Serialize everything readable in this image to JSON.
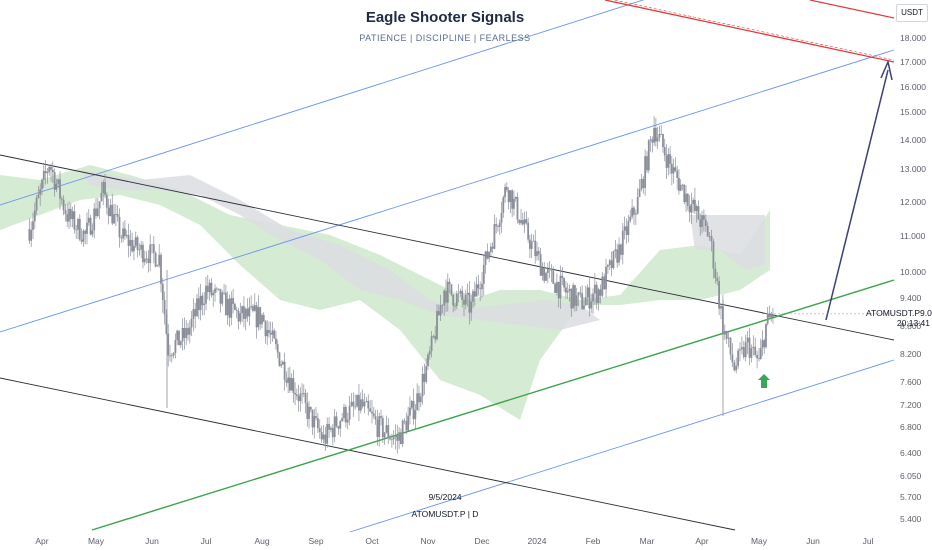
{
  "header": {
    "title": "Eagle Shooter Signals",
    "subtitle": "PATIENCE | DISCIPLINE | FEARLESS"
  },
  "currency_button": "USDT",
  "price_label": {
    "symbol": "ATOMUSDT.P",
    "price": "9.055",
    "countdown": "20:13:41"
  },
  "date_label": "9/5/2024",
  "symbol_label": "ATOMUSDT.P | D",
  "colors": {
    "candle": "#8a8e99",
    "cloud_green": "#cfe8cb",
    "cloud_gray": "#dcdde2",
    "channel_blue": "#6b93ee",
    "trend_black": "#2a2e39",
    "support_green": "#3aa44a",
    "target_red": "#e03a3a",
    "arrow_navy": "#3b3f73",
    "signal_arrow": "#34a853"
  },
  "chart_data": {
    "type": "candlestick",
    "y_scale": "log",
    "ylim": [
      5.2,
      22
    ],
    "y_ticks": [
      "5.400",
      "5.700",
      "6.050",
      "6.400",
      "6.800",
      "7.200",
      "7.600",
      "8.200",
      "8.800",
      "9.400",
      "10.000",
      "11.000",
      "12.000",
      "13.000",
      "14.000",
      "15.000",
      "16.000",
      "17.000",
      "18.000"
    ],
    "x_ticks": [
      "Apr",
      "May",
      "Jun",
      "Jul",
      "Aug",
      "Sep",
      "Oct",
      "Nov",
      "Dec",
      "2024",
      "Feb",
      "Mar",
      "Apr",
      "May",
      "Jun",
      "Jul"
    ],
    "close_series": [
      {
        "date": "2023-03-25",
        "close": 11.2
      },
      {
        "date": "2023-04-05",
        "close": 13.2
      },
      {
        "date": "2023-04-15",
        "close": 11.6
      },
      {
        "date": "2023-04-25",
        "close": 11.0
      },
      {
        "date": "2023-05-05",
        "close": 12.3
      },
      {
        "date": "2023-05-15",
        "close": 11.0
      },
      {
        "date": "2023-05-25",
        "close": 10.6
      },
      {
        "date": "2023-06-05",
        "close": 10.4
      },
      {
        "date": "2023-06-10",
        "close": 8.3
      },
      {
        "date": "2023-06-20",
        "close": 8.6
      },
      {
        "date": "2023-07-01",
        "close": 9.6
      },
      {
        "date": "2023-07-10",
        "close": 9.3
      },
      {
        "date": "2023-07-20",
        "close": 9.0
      },
      {
        "date": "2023-08-01",
        "close": 9.0
      },
      {
        "date": "2023-08-15",
        "close": 7.8
      },
      {
        "date": "2023-08-25",
        "close": 7.2
      },
      {
        "date": "2023-09-05",
        "close": 6.6
      },
      {
        "date": "2023-09-15",
        "close": 7.0
      },
      {
        "date": "2023-09-25",
        "close": 7.2
      },
      {
        "date": "2023-10-05",
        "close": 6.8
      },
      {
        "date": "2023-10-15",
        "close": 6.6
      },
      {
        "date": "2023-10-25",
        "close": 7.2
      },
      {
        "date": "2023-11-01",
        "close": 8.0
      },
      {
        "date": "2023-11-10",
        "close": 9.6
      },
      {
        "date": "2023-11-25",
        "close": 9.2
      },
      {
        "date": "2023-12-05",
        "close": 10.6
      },
      {
        "date": "2023-12-15",
        "close": 12.5
      },
      {
        "date": "2023-12-25",
        "close": 11.2
      },
      {
        "date": "2024-01-05",
        "close": 10.0
      },
      {
        "date": "2024-01-15",
        "close": 9.6
      },
      {
        "date": "2024-01-25",
        "close": 9.3
      },
      {
        "date": "2024-02-05",
        "close": 9.6
      },
      {
        "date": "2024-02-15",
        "close": 10.6
      },
      {
        "date": "2024-02-25",
        "close": 12.0
      },
      {
        "date": "2024-03-05",
        "close": 14.5
      },
      {
        "date": "2024-03-15",
        "close": 13.0
      },
      {
        "date": "2024-03-25",
        "close": 12.0
      },
      {
        "date": "2024-04-05",
        "close": 11.0
      },
      {
        "date": "2024-04-12",
        "close": 8.8
      },
      {
        "date": "2024-04-18",
        "close": 7.9
      },
      {
        "date": "2024-04-25",
        "close": 8.4
      },
      {
        "date": "2024-05-01",
        "close": 8.0
      },
      {
        "date": "2024-05-05",
        "close": 8.8
      },
      {
        "date": "2024-05-09",
        "close": 9.06
      }
    ],
    "annotations": [
      {
        "kind": "trendline",
        "name": "support",
        "color": "green"
      },
      {
        "kind": "channel",
        "name": "descending channel",
        "color": "black"
      },
      {
        "kind": "channel",
        "name": "ascending channel",
        "color": "blue"
      },
      {
        "kind": "projection_arrow",
        "from_price": 8.9,
        "to_price": 17.0
      },
      {
        "kind": "signal_arrow",
        "direction": "up"
      }
    ]
  }
}
